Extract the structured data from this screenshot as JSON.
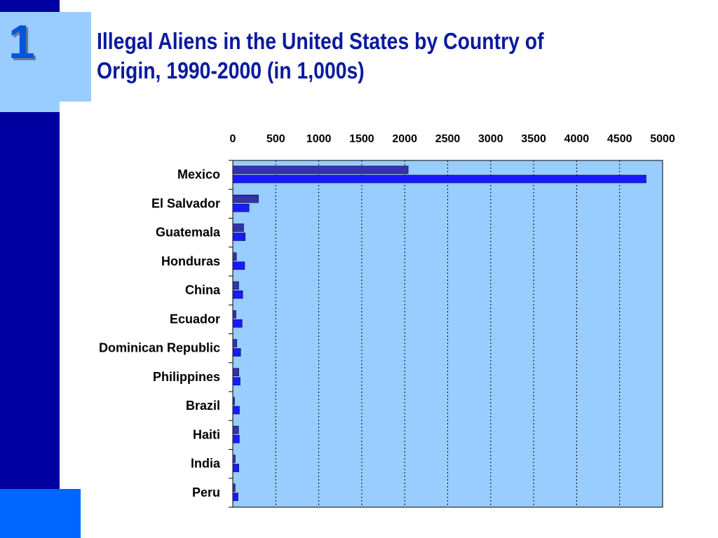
{
  "slide": {
    "number": "1",
    "title": "Illegal Aliens in the United States by Country of Origin, 1990-2000 (in 1,000s)"
  },
  "colors": {
    "background": "#ffffff",
    "sidebar": "#0000a0",
    "accent_light": "#99ccff",
    "accent_bright": "#0066ff",
    "title": "#0a1a9e",
    "plot_area": "#99ccff",
    "series_1": "#3333aa",
    "series_2": "#1a1aff"
  },
  "chart_data": {
    "type": "bar",
    "orientation": "horizontal",
    "title": "Illegal Aliens in the United States by Country of Origin, 1990-2000 (in 1,000s)",
    "xlabel": "",
    "ylabel": "",
    "xlim": [
      0,
      5000
    ],
    "x_ticks": [
      "0",
      "500",
      "1000",
      "1500",
      "2000",
      "2500",
      "3000",
      "3500",
      "4000",
      "4500",
      "5000"
    ],
    "x_axis_position": "top",
    "grid": "vertical dotted",
    "legend": "none",
    "categories": [
      "Mexico",
      "El Salvador",
      "Guatemala",
      "Honduras",
      "China",
      "Ecuador",
      "Dominican Republic",
      "Philippines",
      "Brazil",
      "Haiti",
      "India",
      "Peru"
    ],
    "series": [
      {
        "values": [
          2040,
          298,
          126,
          42,
          69,
          37,
          46,
          70,
          20,
          67,
          28,
          27
        ]
      },
      {
        "values": [
          4808,
          189,
          144,
          138,
          115,
          108,
          91,
          85,
          77,
          76,
          70,
          61
        ]
      }
    ]
  }
}
